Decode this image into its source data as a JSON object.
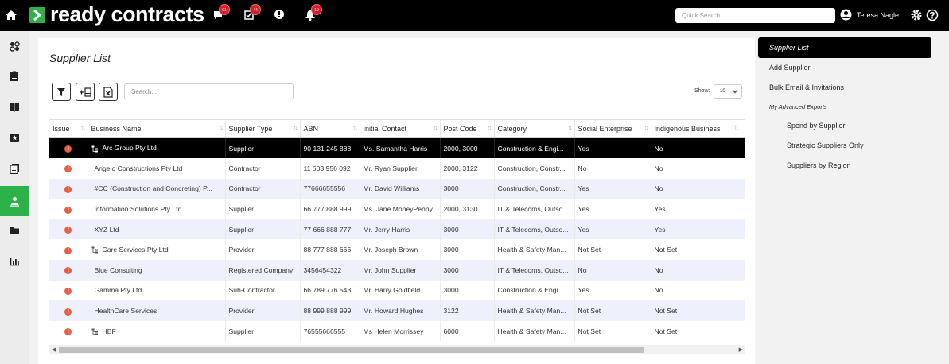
{
  "header": {
    "logo_text": "ready contracts",
    "notifications": [
      {
        "name": "messages",
        "count": "91"
      },
      {
        "name": "tasks",
        "count": "44"
      },
      {
        "name": "alerts",
        "count": ""
      },
      {
        "name": "bell",
        "count": "19"
      }
    ],
    "quick_search_placeholder": "Quick Search...",
    "user_name": "Teresa Nagle"
  },
  "page": {
    "title": "Supplier List",
    "search_placeholder": "Search...",
    "show_label": "Show:",
    "show_value": "10"
  },
  "table": {
    "columns": [
      "Issue",
      "Business Name",
      "Supplier Type",
      "ABN",
      "Initial Contact",
      "Post Code",
      "Category",
      "Social Enterprise",
      "Indigenous Business",
      "S"
    ],
    "rows": [
      {
        "name": "Arc Group Pty Ltd",
        "tree": true,
        "type": "Supplier",
        "abn": "90 131 245 888",
        "contact": "Ms. Samantha Harris",
        "post": "2000, 3000",
        "category": "Construction & Engi...",
        "social": "Yes",
        "indigenous": "No",
        "extra": "S"
      },
      {
        "name": "Angelo Constructions Pty Ltd",
        "tree": false,
        "type": "Contractor",
        "abn": "11 603 956 092",
        "contact": "Mr. Ryan Supplier",
        "post": "2000, 3122",
        "category": "Construction, Constr...",
        "social": "No",
        "indigenous": "No",
        "extra": "S"
      },
      {
        "name": "#CC (Construction and Concreting) P...",
        "tree": false,
        "type": "Contractor",
        "abn": "77666655556",
        "contact": "Mr. David Williams",
        "post": "3000",
        "category": "Construction, Constr...",
        "social": "Yes",
        "indigenous": "No",
        "extra": "S"
      },
      {
        "name": "Information Solutions Pty Ltd",
        "tree": false,
        "type": "Supplier",
        "abn": "66 777 888 999",
        "contact": "Ms. Jane MoneyPenny",
        "post": "2000, 3130",
        "category": "IT & Telecoms, Outso...",
        "social": "Yes",
        "indigenous": "Yes",
        "extra": "S"
      },
      {
        "name": "XYZ Ltd",
        "tree": false,
        "type": "Supplier",
        "abn": "77 666 888 777",
        "contact": "Mr. Jerry Harris",
        "post": "3000",
        "category": "IT & Telecoms, Outso...",
        "social": "Yes",
        "indigenous": "Yes",
        "extra": "I"
      },
      {
        "name": "Care Services Pty Ltd",
        "tree": true,
        "type": "Provider",
        "abn": "88 777 888 666",
        "contact": "Mr. Joseph Brown",
        "post": "3000",
        "category": "Health & Safety Man...",
        "social": "Not Set",
        "indigenous": "Not Set",
        "extra": "C"
      },
      {
        "name": "Blue Consulting",
        "tree": false,
        "type": "Registered Company",
        "abn": "3456454322",
        "contact": "Mr. John Supplier",
        "post": "3000",
        "category": "IT & Telecoms, Outso...",
        "social": "No",
        "indigenous": "No",
        "extra": "S"
      },
      {
        "name": "Gamma Pty Ltd",
        "tree": false,
        "type": "Sub-Contractor",
        "abn": "66 789 776 543",
        "contact": "Mr. Harry Goldfield",
        "post": "3000",
        "category": "Construction & Engi...",
        "social": "Yes",
        "indigenous": "No",
        "extra": "S"
      },
      {
        "name": "HealthCare Services",
        "tree": false,
        "type": "Provider",
        "abn": "88 999 888 999",
        "contact": "Mr. Howard Hughes",
        "post": "3122",
        "category": "Health & Safety Man...",
        "social": "Not Set",
        "indigenous": "Not Set",
        "extra": "I"
      },
      {
        "name": "HBF",
        "tree": true,
        "type": "Supplier",
        "abn": "76555666555",
        "contact": "Ms Helen Morrissey",
        "post": "6000",
        "category": "Health & Safety Man...",
        "social": "Not Set",
        "indigenous": "Not Set",
        "extra": "I"
      }
    ]
  },
  "right_panel": {
    "items": [
      "Supplier List",
      "Add Supplier",
      "Bulk Email & Invitations"
    ],
    "section_heading": "My Advanced Exports",
    "exports": [
      "Spend by Supplier",
      "Strategic Suppliers Only",
      "Suppliers by Region"
    ]
  },
  "colors": {
    "brand_green": "#2db24a",
    "badge_red": "#d2202c",
    "issue_orange": "#e85d3f",
    "row_alt": "#eef1fb"
  }
}
